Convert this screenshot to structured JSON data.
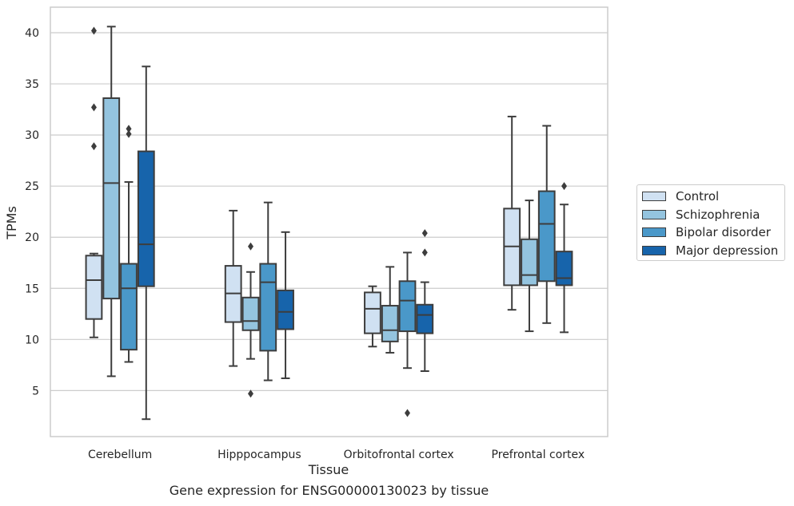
{
  "caption": "Gene expression for ENSG00000130023 by tissue",
  "chart_data": {
    "type": "box",
    "xlabel": "Tissue",
    "ylabel": "TPMs",
    "ylim": [
      0.5,
      42.5
    ],
    "yticks": [
      5,
      10,
      15,
      20,
      25,
      30,
      35,
      40
    ],
    "grid": "horizontal",
    "legend_position": "right",
    "categories": [
      "Cerebellum",
      "Hipppocampus",
      "Orbitofrontal cortex",
      "Prefrontal cortex"
    ],
    "series": [
      {
        "name": "Control",
        "color": "#d0e1f2",
        "boxes": [
          {
            "whislo": 10.2,
            "q1": 12.0,
            "med": 15.8,
            "q3": 18.2,
            "whishi": 18.4,
            "fliers": [
              28.9,
              32.7,
              40.2
            ]
          },
          {
            "whislo": 7.4,
            "q1": 11.7,
            "med": 14.5,
            "q3": 17.2,
            "whishi": 22.6,
            "fliers": []
          },
          {
            "whislo": 9.3,
            "q1": 10.6,
            "med": 13.0,
            "q3": 14.6,
            "whishi": 15.2,
            "fliers": []
          },
          {
            "whislo": 12.9,
            "q1": 15.3,
            "med": 19.1,
            "q3": 22.8,
            "whishi": 31.8,
            "fliers": []
          }
        ]
      },
      {
        "name": "Schizophrenia",
        "color": "#94c4df",
        "boxes": [
          {
            "whislo": 6.4,
            "q1": 14.0,
            "med": 25.3,
            "q3": 33.6,
            "whishi": 40.6,
            "fliers": []
          },
          {
            "whislo": 8.1,
            "q1": 10.9,
            "med": 11.8,
            "q3": 14.1,
            "whishi": 16.6,
            "fliers": [
              4.7,
              19.1
            ]
          },
          {
            "whislo": 8.7,
            "q1": 9.8,
            "med": 10.9,
            "q3": 13.3,
            "whishi": 17.1,
            "fliers": []
          },
          {
            "whislo": 10.8,
            "q1": 15.3,
            "med": 16.3,
            "q3": 19.8,
            "whishi": 23.6,
            "fliers": []
          }
        ]
      },
      {
        "name": "Bipolar disorder",
        "color": "#4a98c9",
        "boxes": [
          {
            "whislo": 7.8,
            "q1": 9.0,
            "med": 15.0,
            "q3": 17.4,
            "whishi": 25.4,
            "fliers": [
              30.1,
              30.6
            ]
          },
          {
            "whislo": 6.0,
            "q1": 8.9,
            "med": 15.6,
            "q3": 17.4,
            "whishi": 23.4,
            "fliers": []
          },
          {
            "whislo": 7.2,
            "q1": 10.8,
            "med": 13.8,
            "q3": 15.7,
            "whishi": 18.5,
            "fliers": [
              2.8
            ]
          },
          {
            "whislo": 11.6,
            "q1": 15.7,
            "med": 21.3,
            "q3": 24.5,
            "whishi": 30.9,
            "fliers": []
          }
        ]
      },
      {
        "name": "Major depression",
        "color": "#1764ab",
        "boxes": [
          {
            "whislo": 2.2,
            "q1": 15.2,
            "med": 19.3,
            "q3": 28.4,
            "whishi": 36.7,
            "fliers": []
          },
          {
            "whislo": 6.2,
            "q1": 11.0,
            "med": 12.7,
            "q3": 14.8,
            "whishi": 20.5,
            "fliers": []
          },
          {
            "whislo": 6.9,
            "q1": 10.6,
            "med": 12.4,
            "q3": 13.4,
            "whishi": 15.6,
            "fliers": [
              18.5,
              20.4
            ]
          },
          {
            "whislo": 10.7,
            "q1": 15.3,
            "med": 16.0,
            "q3": 18.6,
            "whishi": 23.2,
            "fliers": [
              25.0
            ]
          }
        ]
      }
    ]
  }
}
